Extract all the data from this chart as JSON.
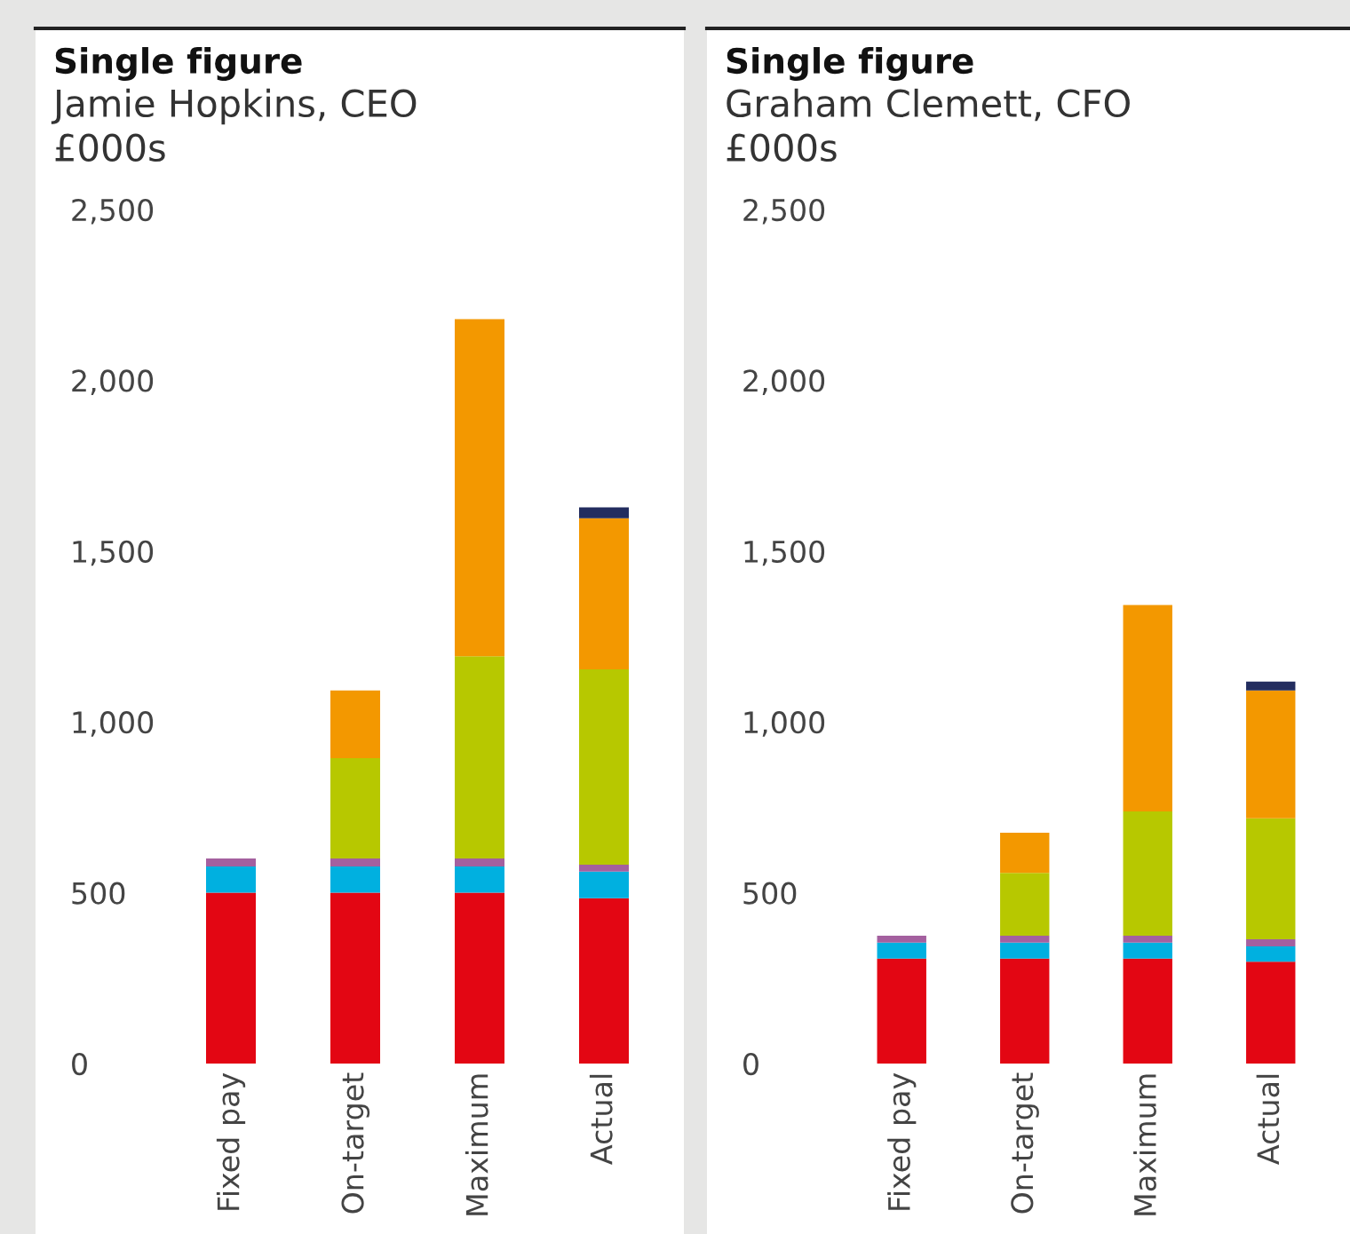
{
  "chart_data": [
    {
      "type": "bar",
      "stacked": true,
      "title": "Single figure",
      "subtitle": "Jamie Hopkins, CEO",
      "ylabel": "£000s",
      "categories": [
        "Fixed pay",
        "On-target",
        "Maximum",
        "Actual"
      ],
      "ylim": [
        0,
        2500
      ],
      "yticks": [
        {
          "value": 0,
          "label": "0"
        },
        {
          "value": 500,
          "label": "500"
        },
        {
          "value": 1000,
          "label": "1,000"
        },
        {
          "value": 1500,
          "label": "1,500"
        },
        {
          "value": 2000,
          "label": "2,000"
        },
        {
          "value": 2500,
          "label": "2,500"
        }
      ],
      "grid": false,
      "legend": false,
      "series": [
        {
          "color": "#e30613",
          "values": [
            500,
            500,
            500,
            484
          ]
        },
        {
          "color": "#00b0e0",
          "values": [
            77,
            77,
            77,
            78
          ]
        },
        {
          "color": "#a4609f",
          "values": [
            23,
            23,
            23,
            20
          ]
        },
        {
          "color": "#b7c800",
          "values": [
            0,
            294,
            592,
            572
          ]
        },
        {
          "color": "#f39800",
          "values": [
            0,
            198,
            987,
            442
          ]
        },
        {
          "color": "#232d5f",
          "values": [
            0,
            0,
            0,
            32
          ]
        }
      ]
    },
    {
      "type": "bar",
      "stacked": true,
      "title": "Single figure",
      "subtitle": "Graham Clemett, CFO",
      "ylabel": "£000s",
      "categories": [
        "Fixed pay",
        "On-target",
        "Maximum",
        "Actual"
      ],
      "ylim": [
        0,
        2500
      ],
      "yticks": [
        {
          "value": 0,
          "label": "0"
        },
        {
          "value": 500,
          "label": "500"
        },
        {
          "value": 1000,
          "label": "1,000"
        },
        {
          "value": 1500,
          "label": "1,500"
        },
        {
          "value": 2000,
          "label": "2,000"
        },
        {
          "value": 2500,
          "label": "2,500"
        }
      ],
      "grid": false,
      "legend": false,
      "series": [
        {
          "color": "#e30613",
          "values": [
            307,
            307,
            307,
            298
          ]
        },
        {
          "color": "#00b0e0",
          "values": [
            47,
            47,
            47,
            45
          ]
        },
        {
          "color": "#a4609f",
          "values": [
            20,
            20,
            20,
            21
          ]
        },
        {
          "color": "#b7c800",
          "values": [
            0,
            184,
            364,
            354
          ]
        },
        {
          "color": "#f39800",
          "values": [
            0,
            118,
            604,
            374
          ]
        },
        {
          "color": "#232d5f",
          "values": [
            0,
            0,
            0,
            26
          ]
        }
      ]
    }
  ]
}
